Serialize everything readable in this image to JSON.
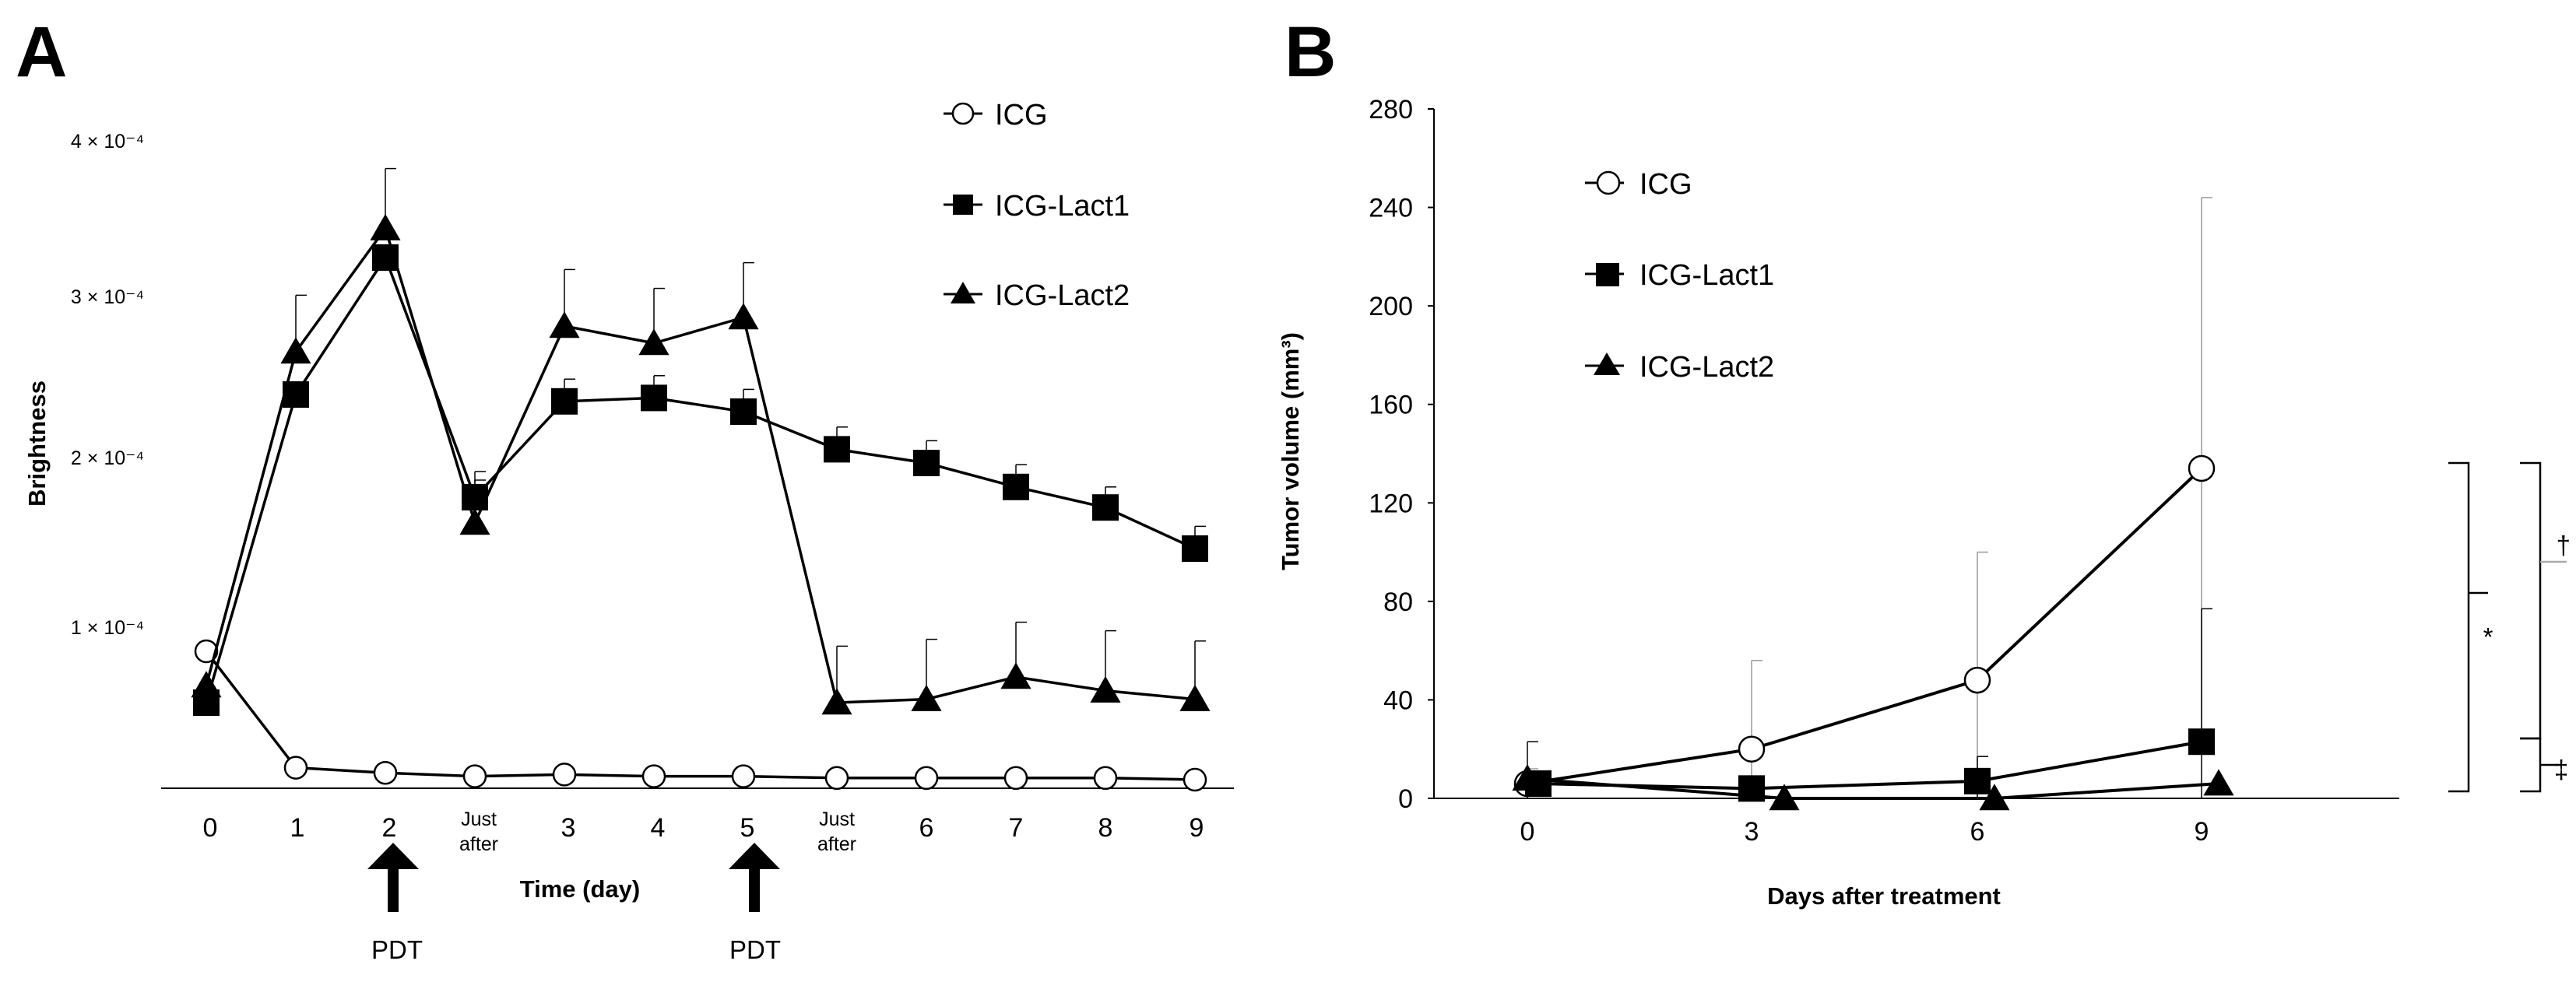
{
  "chart_data": [
    {
      "panel": "A",
      "type": "line",
      "ylabel": "Brightness",
      "xlabel": "Time (day)",
      "categories": [
        "0",
        "1",
        "2",
        "Just after",
        "3",
        "4",
        "5",
        "Just after",
        "6",
        "7",
        "8",
        "9"
      ],
      "y_ticks": [
        "1 × 10⁻⁴",
        "2 × 10⁻⁴",
        "3 × 10⁻⁴",
        "4 × 10⁻⁴"
      ],
      "y_tick_values": [
        0.0001,
        0.0002,
        0.0003,
        0.0004
      ],
      "ylim": [
        0,
        0.0004
      ],
      "annotations": [
        {
          "text": "PDT",
          "at_category": 2
        },
        {
          "text": "PDT",
          "at_category": 6
        }
      ],
      "series": [
        {
          "name": "ICG",
          "marker": "open-circle",
          "values": [
            8e-05,
            1.2e-05,
            9e-06,
            7e-06,
            8e-06,
            7e-06,
            7e-06,
            6e-06,
            6e-06,
            6e-06,
            6e-06,
            5e-06
          ],
          "errors": [
            0,
            0,
            0,
            0,
            0,
            0,
            0,
            0,
            0,
            0,
            0,
            0
          ]
        },
        {
          "name": "ICG-Lact1",
          "marker": "filled-square",
          "values": [
            5e-05,
            0.00023,
            0.00031,
            0.00017,
            0.000226,
            0.000228,
            0.00022,
            0.000198,
            0.00019,
            0.000176,
            0.000164,
            0.00014
          ],
          "errors": [
            0,
            0,
            0,
            1.5e-05,
            1.3e-05,
            1.3e-05,
            1.3e-05,
            1.3e-05,
            1.3e-05,
            1.3e-05,
            1.2e-05,
            1.3e-05
          ]
        },
        {
          "name": "ICG-Lact2",
          "marker": "filled-triangle",
          "values": [
            6e-05,
            0.000255,
            0.000327,
            0.000155,
            0.00027,
            0.00026,
            0.000275,
            5e-05,
            5.2e-05,
            6.5e-05,
            5.7e-05,
            5.2e-05
          ],
          "errors": [
            0,
            3.3e-05,
            3.5e-05,
            2.5e-05,
            3.3e-05,
            3.2e-05,
            3.2e-05,
            3.3e-05,
            3.5e-05,
            3.2e-05,
            3.5e-05,
            3.4e-05
          ]
        }
      ]
    },
    {
      "panel": "B",
      "type": "line",
      "ylabel": "Tumor volume (mm³)",
      "xlabel": "Days after treatment",
      "x": [
        0,
        3,
        6,
        9
      ],
      "x_ticks": [
        "0",
        "3",
        "6",
        "9"
      ],
      "y_ticks": [
        "0",
        "40",
        "80",
        "120",
        "160",
        "200",
        "240",
        "280"
      ],
      "y_tick_values": [
        0,
        40,
        80,
        120,
        160,
        200,
        240,
        280
      ],
      "ylim": [
        0,
        280
      ],
      "significance": [
        {
          "symbol": "†",
          "between": [
            "ICG",
            "ICG-Lact1"
          ]
        },
        {
          "symbol": "*",
          "between": [
            "ICG",
            "ICG-Lact2"
          ]
        },
        {
          "symbol": "‡",
          "between": [
            "ICG-Lact1",
            "ICG-Lact2"
          ]
        }
      ],
      "series": [
        {
          "name": "ICG",
          "marker": "open-circle",
          "values": [
            6,
            20,
            48,
            134
          ],
          "errors": [
            6,
            36,
            52,
            110
          ]
        },
        {
          "name": "ICG-Lact1",
          "marker": "filled-square",
          "values": [
            6,
            4,
            7,
            23
          ],
          "errors": [
            4,
            4,
            10,
            54
          ]
        },
        {
          "name": "ICG-Lact2",
          "marker": "filled-triangle",
          "values": [
            8,
            0,
            0,
            6
          ],
          "errors": [
            15,
            0,
            0,
            0
          ]
        }
      ]
    }
  ]
}
